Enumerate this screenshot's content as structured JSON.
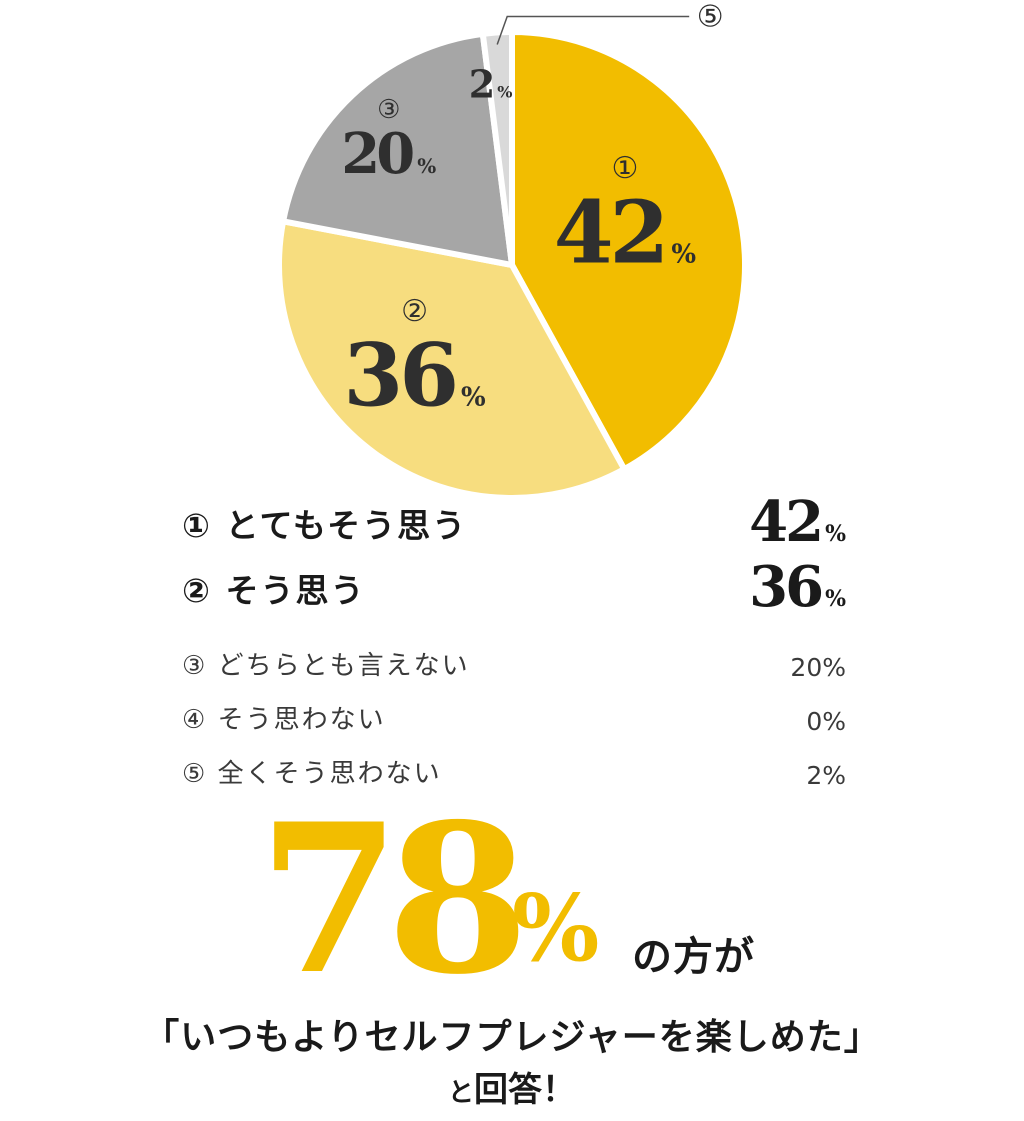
{
  "chart_data": {
    "type": "pie",
    "slices": [
      {
        "id": "①",
        "label": "とてもそう思う",
        "value": 42,
        "color": "#f2bd00"
      },
      {
        "id": "②",
        "label": "そう思う",
        "value": 36,
        "color": "#f7dd7f"
      },
      {
        "id": "③",
        "label": "どちらとも言えない",
        "value": 20,
        "color": "#a6a6a6"
      },
      {
        "id": "④",
        "label": "そう思わない",
        "value": 0,
        "color": "#8a8a8a"
      },
      {
        "id": "⑤",
        "label": "全くそう思わない",
        "value": 2,
        "color": "#d9d9d9"
      }
    ],
    "unit": "%"
  },
  "legend": [
    {
      "marker": "①",
      "label": "とてもそう思う",
      "value": "42",
      "unit": "%"
    },
    {
      "marker": "②",
      "label": "そう思う",
      "value": "36",
      "unit": "%"
    },
    {
      "marker": "③",
      "label": "どちらとも言えない",
      "value": "20%"
    },
    {
      "marker": "④",
      "label": "そう思わない",
      "value": "0%"
    },
    {
      "marker": "⑤",
      "label": "全くそう思わない",
      "value": "2%"
    }
  ],
  "headline": {
    "number": "78",
    "unit": "%",
    "tail": "の方が",
    "caption": "「いつもよりセルフプレジャーを楽しめた」",
    "caption2_small": "と",
    "caption2_rest": "回答！"
  }
}
